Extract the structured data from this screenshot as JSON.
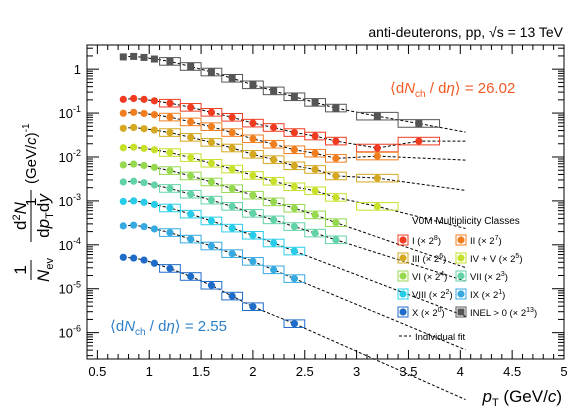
{
  "chart_data": {
    "type": "scatter",
    "title": "anti-deuterons, pp, √s = 13 TeV",
    "xlabel": "p_T (GeV/c)",
    "ylabel": "1/N_ev d²N/(dp_T dy) (GeV/c)^-1",
    "xlim": [
      0.4,
      5.0
    ],
    "ylim_log10": [
      -6.6,
      0.55
    ],
    "log_y": true,
    "xticks": [
      "0.5",
      "1",
      "1.5",
      "2",
      "2.5",
      "3",
      "3.5",
      "4",
      "4.5",
      "5"
    ],
    "yticks": [
      "10^-6",
      "10^-5",
      "10^-4",
      "10^-3",
      "10^-2",
      "10^-1",
      "1"
    ],
    "annotations": {
      "high": "⟨dN_ch / dη⟩ = 26.02",
      "low": "⟨dN_ch / dη⟩ = 2.55"
    },
    "legend": {
      "title": "V0M Multiplicity Classes",
      "entries": [
        "I (× 2^8)",
        "II (× 2^7)",
        "III (× 2^6)",
        "IV + V (× 2^5)",
        "VI (× 2^4)",
        "VII (× 2^3)",
        "VIII (× 2^2)",
        "IX (× 2^1)",
        "X (× 2^0)",
        "INEL > 0 (× 2^13)"
      ],
      "fit_label": "Individual fit",
      "placement": "bottom-right"
    },
    "series": [
      {
        "name": "I (× 2^8)",
        "color": "#f03b20",
        "marker": "circle",
        "x": [
          0.75,
          0.85,
          0.95,
          1.05,
          1.2,
          1.4,
          1.6,
          1.8,
          2.0,
          2.2,
          2.4,
          2.6,
          2.8,
          3.2,
          3.6
        ],
        "y": [
          0.205,
          0.215,
          0.205,
          0.19,
          0.168,
          0.135,
          0.104,
          0.08,
          0.059,
          0.047,
          0.036,
          0.03,
          0.023,
          0.016,
          0.023
        ]
      },
      {
        "name": "II (× 2^7)",
        "color": "#f07e1e",
        "marker": "circle",
        "x": [
          0.75,
          0.85,
          0.95,
          1.05,
          1.2,
          1.4,
          1.6,
          1.8,
          2.0,
          2.2,
          2.4,
          2.6,
          2.8,
          3.2
        ],
        "y": [
          0.099,
          0.104,
          0.098,
          0.092,
          0.081,
          0.063,
          0.049,
          0.036,
          0.026,
          0.0195,
          0.0146,
          0.0122,
          0.0093,
          0.0105
        ]
      },
      {
        "name": "III (× 2^6)",
        "color": "#d4a820",
        "marker": "circle",
        "x": [
          0.75,
          0.85,
          0.95,
          1.05,
          1.2,
          1.4,
          1.6,
          1.8,
          2.0,
          2.2,
          2.4,
          2.6,
          2.8,
          3.2
        ],
        "y": [
          0.045,
          0.047,
          0.044,
          0.041,
          0.036,
          0.028,
          0.0215,
          0.016,
          0.0115,
          0.0087,
          0.0063,
          0.0052,
          0.0037,
          0.0033
        ]
      },
      {
        "name": "IV + V (× 2^5)",
        "color": "#c8e02a",
        "marker": "circle",
        "x": [
          0.75,
          0.85,
          0.95,
          1.05,
          1.2,
          1.4,
          1.6,
          1.8,
          2.0,
          2.2,
          2.4,
          2.6,
          2.8,
          3.2
        ],
        "y": [
          0.0162,
          0.0167,
          0.0157,
          0.0146,
          0.0126,
          0.0097,
          0.0072,
          0.0053,
          0.0038,
          0.0028,
          0.0021,
          0.0017,
          0.0012,
          0.00075
        ]
      },
      {
        "name": "VI (× 2^4)",
        "color": "#96d84e",
        "marker": "circle",
        "x": [
          0.75,
          0.85,
          0.95,
          1.05,
          1.2,
          1.4,
          1.6,
          1.8,
          2.0,
          2.2,
          2.4,
          2.6,
          2.8
        ],
        "y": [
          0.0066,
          0.0069,
          0.0064,
          0.0058,
          0.0049,
          0.0037,
          0.0027,
          0.0019,
          0.00135,
          0.00095,
          0.00068,
          0.00048,
          0.00032
        ]
      },
      {
        "name": "VII (× 2^3)",
        "color": "#62d3a6",
        "marker": "circle",
        "x": [
          0.75,
          0.85,
          0.95,
          1.05,
          1.2,
          1.4,
          1.6,
          1.8,
          2.0,
          2.2,
          2.4,
          2.6,
          2.8
        ],
        "y": [
          0.0027,
          0.0028,
          0.0026,
          0.0023,
          0.00192,
          0.00142,
          0.00104,
          0.00075,
          0.00052,
          0.00037,
          0.00026,
          0.000185,
          0.00013
        ]
      },
      {
        "name": "VIII (× 2^2)",
        "color": "#27cde8",
        "marker": "circle",
        "x": [
          0.75,
          0.85,
          0.95,
          1.05,
          1.2,
          1.4,
          1.6,
          1.8,
          2.0,
          2.2,
          2.4
        ],
        "y": [
          0.00097,
          0.001,
          0.00093,
          0.00083,
          0.00069,
          0.0005,
          0.00035,
          0.00024,
          0.000165,
          0.00011,
          7.2e-05
        ]
      },
      {
        "name": "IX (× 2^1)",
        "color": "#36a9e0",
        "marker": "circle",
        "x": [
          0.75,
          0.85,
          0.95,
          1.05,
          1.2,
          1.4,
          1.6,
          1.8,
          2.0,
          2.2,
          2.4
        ],
        "y": [
          0.00027,
          0.00028,
          0.00026,
          0.00023,
          0.00019,
          0.000135,
          9.4e-05,
          6.3e-05,
          4.2e-05,
          2.7e-05,
          1.7e-05
        ]
      },
      {
        "name": "X (× 2^0)",
        "color": "#1f6cc8",
        "marker": "circle",
        "x": [
          0.75,
          0.85,
          0.95,
          1.05,
          1.2,
          1.4,
          1.6,
          1.8,
          2.0,
          2.4
        ],
        "y": [
          5.2e-05,
          5e-05,
          4.5e-05,
          3.8e-05,
          2.9e-05,
          1.9e-05,
          1.2e-05,
          6.8e-06,
          3.9e-06,
          1.6e-06
        ]
      },
      {
        "name": "INEL > 0 (× 2^13)",
        "color": "#555555",
        "marker": "square",
        "x": [
          0.75,
          0.85,
          0.95,
          1.05,
          1.2,
          1.4,
          1.6,
          1.8,
          2.0,
          2.2,
          2.4,
          2.6,
          2.8,
          3.2,
          3.6
        ],
        "y": [
          1.9,
          1.95,
          1.85,
          1.7,
          1.5,
          1.15,
          0.86,
          0.62,
          0.44,
          0.32,
          0.235,
          0.175,
          0.13,
          0.085,
          0.058
        ]
      }
    ]
  }
}
